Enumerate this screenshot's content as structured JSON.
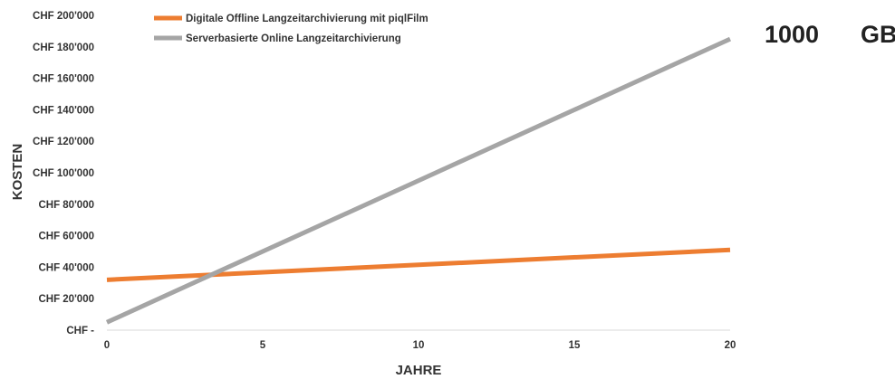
{
  "chart_data": {
    "type": "line",
    "xlabel": "JAHRE",
    "ylabel": "KOSTEN",
    "xlim": [
      0,
      20
    ],
    "ylim": [
      0,
      200000
    ],
    "x_ticks": [
      0,
      5,
      10,
      15,
      20
    ],
    "x_tick_labels": [
      "0",
      "5",
      "10",
      "15",
      "20"
    ],
    "y_ticks": [
      0,
      20000,
      40000,
      60000,
      80000,
      100000,
      120000,
      140000,
      160000,
      180000,
      200000
    ],
    "y_tick_labels": [
      "CHF -",
      "CHF 20'000",
      "CHF 40'000",
      "CHF 60'000",
      "CHF 80'000",
      "CHF 100'000",
      "CHF 120'000",
      "CHF 140'000",
      "CHF 160'000",
      "CHF 180'000",
      "CHF 200'000"
    ],
    "grid": false,
    "legend_position": "top-left",
    "series": [
      {
        "name": "Digitale Offline Langzeitarchivierung mit piqlFilm",
        "color": "#ED7D31",
        "x": [
          0,
          20
        ],
        "y": [
          32000,
          51000
        ]
      },
      {
        "name": "Serverbasierte Online Langzeitarchivierung",
        "color": "#A5A5A5",
        "x": [
          0,
          20
        ],
        "y": [
          5000,
          185000
        ]
      }
    ],
    "annotation": {
      "value": "1000",
      "unit": "GB"
    }
  }
}
